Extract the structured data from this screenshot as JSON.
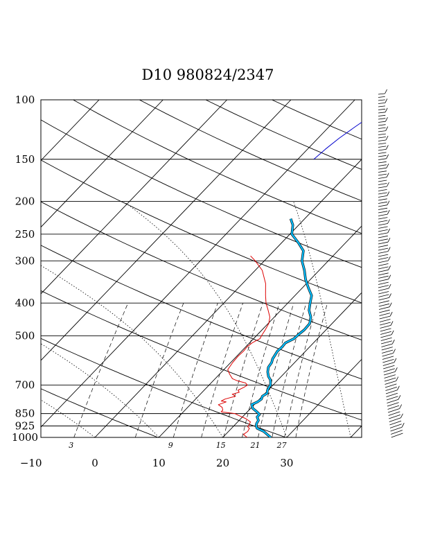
{
  "chart_data": {
    "type": "line",
    "title": "D10 980824/2347",
    "pressure_ticks": [
      "100",
      "150",
      "200",
      "250",
      "300",
      "400",
      "500",
      "700",
      "850",
      "925",
      "1000"
    ],
    "pressure_levels": [
      100,
      150,
      200,
      250,
      300,
      400,
      500,
      700,
      850,
      925,
      1000
    ],
    "temperature_ticks": [
      "−10",
      "0",
      "10",
      "20",
      "30"
    ],
    "temperature_levels": [
      -10,
      0,
      10,
      20,
      30
    ],
    "mixing_ratio_labels": [
      "3",
      "9",
      "15",
      "21",
      "27"
    ],
    "xlim": [
      -10,
      40
    ],
    "ylim": [
      1000,
      100
    ],
    "yscale": "log",
    "grid": true,
    "colors": {
      "temperature": "#00bfff",
      "dewpoint": "#dd0000",
      "parcel": "#0000cc",
      "grid": "#000000"
    },
    "series": [
      {
        "key": "temperature",
        "points": [
          [
            1000,
            27.5
          ],
          [
            980,
            26.5
          ],
          [
            960,
            25.5
          ],
          [
            940,
            24
          ],
          [
            925,
            23.5
          ],
          [
            910,
            23.2
          ],
          [
            890,
            23.0
          ],
          [
            870,
            22.3
          ],
          [
            855,
            22.3
          ],
          [
            840,
            21.5
          ],
          [
            820,
            20.3
          ],
          [
            800,
            19.6
          ],
          [
            785,
            20.1
          ],
          [
            770,
            20.3
          ],
          [
            755,
            20.0
          ],
          [
            740,
            20.3
          ],
          [
            725,
            19.9
          ],
          [
            710,
            19.7
          ],
          [
            700,
            19.6
          ],
          [
            690,
            19.3
          ],
          [
            675,
            18.8
          ],
          [
            660,
            18.0
          ],
          [
            640,
            17.2
          ],
          [
            620,
            16.6
          ],
          [
            600,
            16.4
          ],
          [
            585,
            16.0
          ],
          [
            570,
            15.8
          ],
          [
            555,
            15.6
          ],
          [
            540,
            15.7
          ],
          [
            525,
            15.6
          ],
          [
            510,
            16.3
          ],
          [
            495,
            16.4
          ],
          [
            480,
            16.6
          ],
          [
            460,
            16.5
          ],
          [
            440,
            15.7
          ],
          [
            420,
            14.4
          ],
          [
            400,
            13.5
          ],
          [
            380,
            12.6
          ],
          [
            360,
            10.9
          ],
          [
            340,
            9.2
          ],
          [
            320,
            7.7
          ],
          [
            300,
            5.9
          ],
          [
            280,
            4.6
          ],
          [
            265,
            2.6
          ],
          [
            250,
            0.3
          ],
          [
            235,
            -0.9
          ],
          [
            225,
            -2.2
          ]
        ]
      },
      {
        "key": "dewpoint",
        "points": [
          [
            1000,
            23.8
          ],
          [
            980,
            22.8
          ],
          [
            960,
            23.0
          ],
          [
            940,
            22.8
          ],
          [
            930,
            22.3
          ],
          [
            915,
            22.2
          ],
          [
            900,
            22.0
          ],
          [
            880,
            20.8
          ],
          [
            860,
            19.1
          ],
          [
            850,
            18.3
          ],
          [
            840,
            15.9
          ],
          [
            830,
            15.9
          ],
          [
            815,
            15.4
          ],
          [
            800,
            14.4
          ],
          [
            785,
            15.2
          ],
          [
            780,
            14.3
          ],
          [
            770,
            14.6
          ],
          [
            755,
            15.8
          ],
          [
            745,
            15.0
          ],
          [
            735,
            15.8
          ],
          [
            725,
            15.3
          ],
          [
            710,
            15.8
          ],
          [
            700,
            16.0
          ],
          [
            690,
            15.4
          ],
          [
            680,
            13.8
          ],
          [
            670,
            12.7
          ],
          [
            650,
            11.6
          ],
          [
            630,
            10.6
          ],
          [
            600,
            10.3
          ],
          [
            575,
            10.2
          ],
          [
            555,
            10.3
          ],
          [
            540,
            10.2
          ],
          [
            525,
            10.4
          ],
          [
            510,
            11.0
          ],
          [
            500,
            10.8
          ],
          [
            480,
            10.5
          ],
          [
            460,
            10.1
          ],
          [
            440,
            9.3
          ],
          [
            420,
            8.0
          ],
          [
            400,
            6.6
          ],
          [
            380,
            5.4
          ],
          [
            350,
            3.6
          ],
          [
            320,
            1.1
          ],
          [
            300,
            -1.4
          ],
          [
            290,
            -2.9
          ]
        ]
      },
      {
        "key": "parcel",
        "points": [
          [
            150,
            -7.5
          ],
          [
            140,
            -7.2
          ],
          [
            130,
            -6.7
          ],
          [
            120,
            -5.9
          ],
          [
            110,
            -4.9
          ],
          [
            100,
            -3.8
          ]
        ]
      }
    ]
  }
}
